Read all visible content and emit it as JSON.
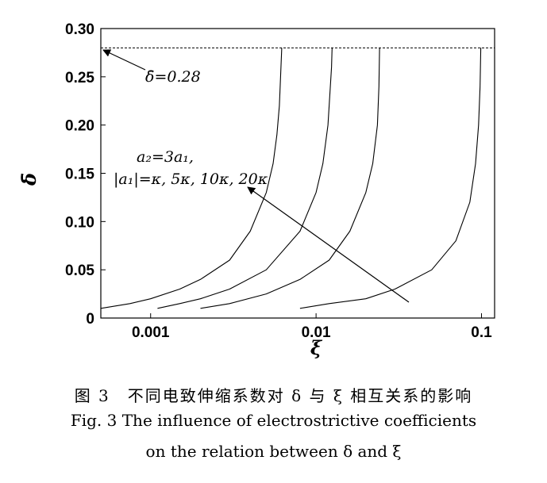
{
  "chart_data": {
    "type": "line",
    "x_scale": "log",
    "xlim": [
      0.0005,
      0.12
    ],
    "ylim": [
      0,
      0.3
    ],
    "x_ticks": [
      0.001,
      0.01,
      0.1
    ],
    "x_tick_labels": [
      "0.001",
      "0.01",
      "0.1"
    ],
    "y_ticks": [
      0,
      0.05,
      0.1,
      0.15,
      0.2,
      0.25,
      0.3
    ],
    "y_tick_labels": [
      "0",
      "0.05",
      "0.10",
      "0.15",
      "0.20",
      "0.25",
      "0.30"
    ],
    "xlabel": "ξ",
    "ylabel": "δ̄",
    "grid": false,
    "reference_line": {
      "y": 0.28,
      "label": "δ̄=0.28"
    },
    "series": [
      {
        "x": [
          0.0005,
          0.00075,
          0.001,
          0.0015,
          0.002,
          0.003,
          0.004,
          0.005,
          0.0055,
          0.0058,
          0.006,
          0.0061,
          0.0062
        ],
        "y": [
          0.01,
          0.015,
          0.02,
          0.03,
          0.04,
          0.06,
          0.09,
          0.13,
          0.16,
          0.19,
          0.22,
          0.25,
          0.28
        ]
      },
      {
        "x": [
          0.0011,
          0.0015,
          0.002,
          0.003,
          0.005,
          0.008,
          0.01,
          0.011,
          0.0118,
          0.0122,
          0.0124,
          0.0125
        ],
        "y": [
          0.01,
          0.015,
          0.02,
          0.03,
          0.05,
          0.09,
          0.13,
          0.16,
          0.2,
          0.24,
          0.26,
          0.28
        ]
      },
      {
        "x": [
          0.002,
          0.003,
          0.005,
          0.008,
          0.012,
          0.016,
          0.02,
          0.022,
          0.0235,
          0.024,
          0.0242
        ],
        "y": [
          0.01,
          0.015,
          0.025,
          0.04,
          0.06,
          0.09,
          0.13,
          0.16,
          0.2,
          0.24,
          0.28
        ]
      },
      {
        "x": [
          0.008,
          0.012,
          0.02,
          0.03,
          0.05,
          0.07,
          0.085,
          0.092,
          0.096,
          0.098,
          0.099
        ],
        "y": [
          0.01,
          0.015,
          0.02,
          0.03,
          0.05,
          0.08,
          0.12,
          0.16,
          0.2,
          0.24,
          0.28
        ]
      }
    ],
    "annotation": {
      "line1": "a₂=3a₁,",
      "line2": "|a₁|=κ, 5κ, 10κ, 20κ"
    }
  },
  "caption": {
    "zh": "图 3　不同电致伸缩系数对 δ 与 ξ 相互关系的影响",
    "en_line1": "Fig. 3   The influence of electrostrictive coefficients",
    "en_line2": "on the relation between δ and ξ"
  }
}
